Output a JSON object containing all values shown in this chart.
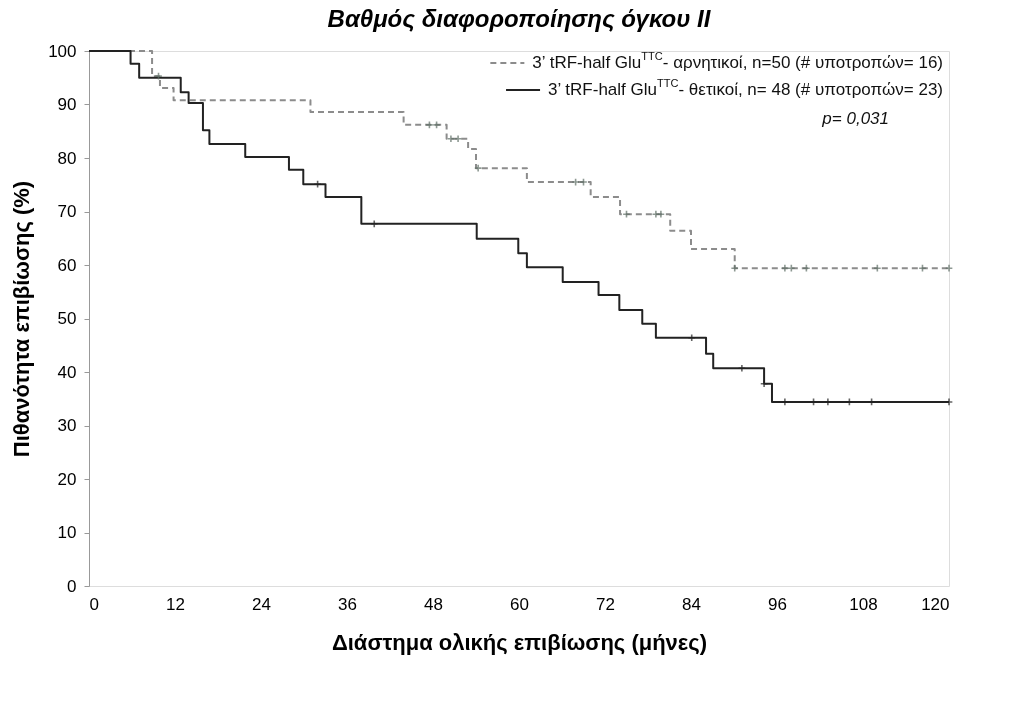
{
  "chart_data": {
    "type": "step",
    "title": "Βαθμός διαφοροποίησης όγκου ΙΙ",
    "xlabel": "Διάστημα ολικής επιβίωσης (μήνες)",
    "ylabel": "Πιθανότητα επιβίωσης (%)",
    "annotations": [
      "p= 0,031"
    ],
    "xlim": [
      0,
      120
    ],
    "xticks": [
      0,
      12,
      24,
      36,
      48,
      60,
      72,
      84,
      96,
      108,
      120
    ],
    "ylim": [
      0,
      100
    ],
    "yticks": [
      0,
      10,
      20,
      30,
      40,
      50,
      60,
      70,
      80,
      90,
      100
    ],
    "grid": false,
    "legend": "top right",
    "series": [
      {
        "name": "3’ tRF-half Glu$^{TTC}$- αρνητικοί, n=50 (# υποτροπών= 16)",
        "line_style": "dashed",
        "color": "#8c8c8c",
        "x": [
          0,
          8.8,
          9.9,
          11.8,
          30.9,
          43.9,
          49.9,
          52.9,
          54,
          61.1,
          70,
          74.1,
          81.1,
          84,
          90.1,
          120
        ],
        "values": [
          100,
          95.3,
          93.1,
          90.8,
          88.6,
          86.2,
          83.6,
          81.7,
          78.1,
          75.5,
          72.7,
          69.5,
          66.4,
          63,
          59.4,
          59.4
        ]
      },
      {
        "name": "3’ tRF-half Glu$^{TTC}$- θετικοί, n= 48 (# υποτροπών= 23)",
        "line_style": "solid",
        "color": "#222222",
        "x": [
          0,
          5.8,
          7.0,
          12.8,
          13.9,
          15.9,
          16.8,
          21.8,
          27.9,
          29.9,
          33.0,
          38.0,
          54.1,
          59.9,
          61.1,
          66.1,
          71.1,
          74.0,
          77.2,
          79.1,
          86.1,
          87.1,
          94.2,
          95.3,
          120
        ],
        "values": [
          100,
          97.6,
          95.0,
          92.3,
          90.3,
          85.2,
          82.6,
          80.2,
          77.8,
          75.1,
          72.7,
          67.7,
          64.9,
          62.2,
          59.6,
          56.8,
          54.4,
          51.6,
          49.0,
          46.4,
          43.4,
          40.7,
          37.8,
          34.4,
          34.4
        ]
      },
      {
        "type": "scatter",
        "marker": "cross",
        "color": "#5f6f66",
        "x": [
          9.7,
          47.5,
          48.5,
          50.5,
          51.5,
          54.3,
          67.9,
          69.0,
          75.0,
          79.1,
          79.8,
          90.1,
          97.1,
          98.0,
          100.1,
          110.0,
          116.3,
          120
        ],
        "values": [
          95.3,
          86.2,
          86.2,
          83.6,
          83.6,
          78.1,
          75.5,
          75.5,
          69.5,
          69.5,
          69.5,
          59.4,
          59.4,
          59.4,
          59.4,
          59.4,
          59.4,
          59.4
        ]
      },
      {
        "type": "scatter",
        "marker": "cross",
        "color": "#222222",
        "x": [
          31.9,
          39.8,
          84.1,
          91.1,
          94.2,
          97.1,
          101.1,
          103.1,
          106.1,
          109.2,
          120
        ],
        "values": [
          75.1,
          67.7,
          46.4,
          40.7,
          37.8,
          34.4,
          34.4,
          34.4,
          34.4,
          34.4,
          34.4
        ]
      }
    ]
  }
}
